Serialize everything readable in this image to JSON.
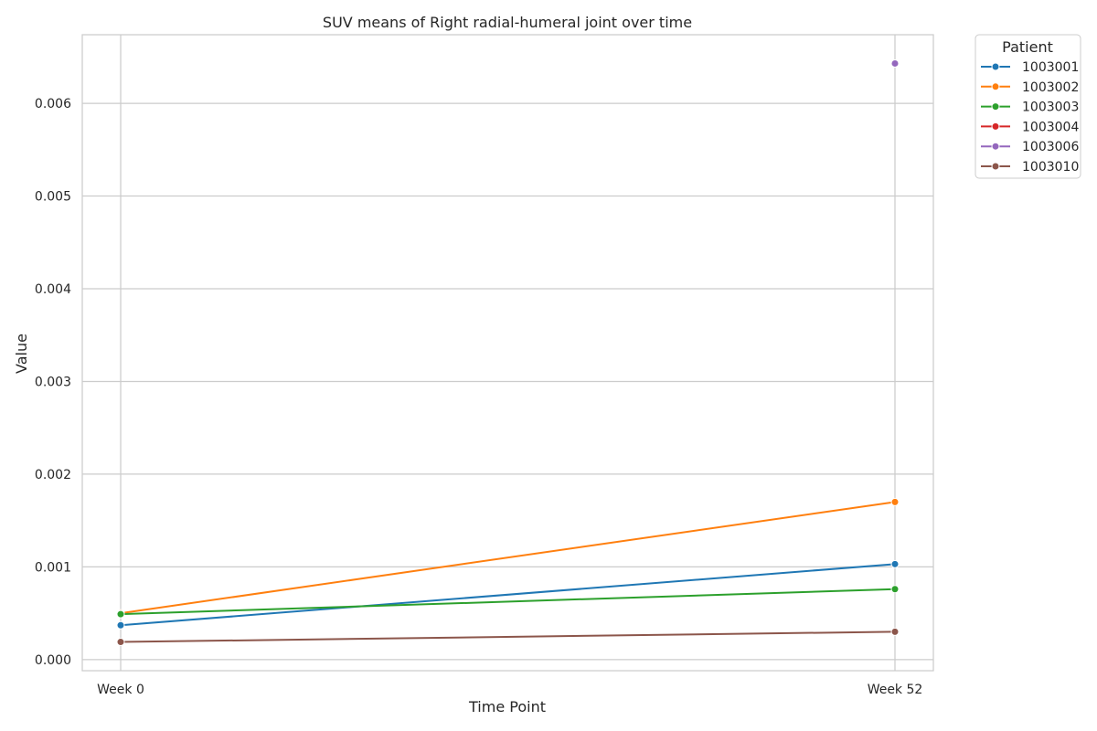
{
  "chart_data": {
    "type": "line",
    "title": "SUV means of Right radial-humeral joint over time",
    "xlabel": "Time Point",
    "ylabel": "Value",
    "categories": [
      "Week 0",
      "Week 52"
    ],
    "ylim": [
      -0.00012,
      0.00674
    ],
    "yticks": [
      0.0,
      0.001,
      0.002,
      0.003,
      0.004,
      0.005,
      0.006
    ],
    "ytick_labels": [
      "0.000",
      "0.001",
      "0.002",
      "0.003",
      "0.004",
      "0.005",
      "0.006"
    ],
    "grid": true,
    "legend": {
      "title": "Patient",
      "placement": "outside-right-top"
    },
    "series": [
      {
        "name": "1003001",
        "color": "#1f77b4",
        "values": [
          0.00037,
          0.00103
        ]
      },
      {
        "name": "1003002",
        "color": "#ff7f0e",
        "values": [
          0.0005,
          0.0017
        ]
      },
      {
        "name": "1003003",
        "color": "#2ca02c",
        "values": [
          0.00049,
          0.00076
        ]
      },
      {
        "name": "1003004",
        "color": "#d62728",
        "values": [
          null,
          null
        ]
      },
      {
        "name": "1003006",
        "color": "#9467bd",
        "values": [
          null,
          0.00643
        ]
      },
      {
        "name": "1003010",
        "color": "#8c564b",
        "values": [
          0.00019,
          0.0003
        ]
      }
    ]
  }
}
